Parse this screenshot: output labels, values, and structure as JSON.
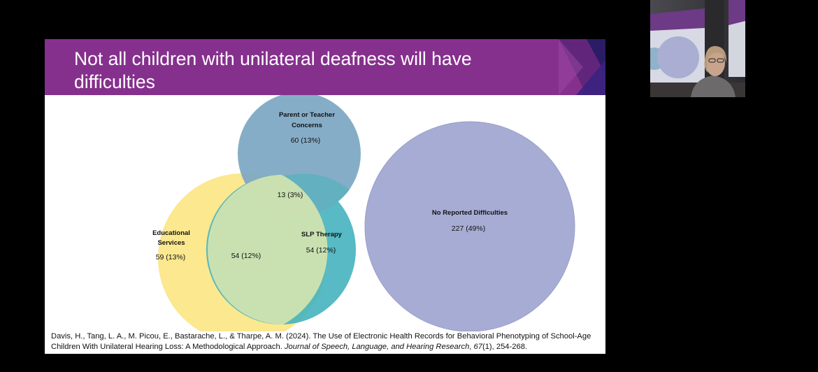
{
  "slide": {
    "title": "Not all children with unilateral deafness will have difficulties",
    "venn": {
      "parent_teacher": {
        "label_line1": "Parent or Teacher",
        "label_line2": "Concerns",
        "value": "60 (13%)"
      },
      "parent_slp_overlap": {
        "value": "13 (3%)"
      },
      "educational": {
        "label_line1": "Educational",
        "label_line2": "Services",
        "value": "59 (13%)"
      },
      "edu_slp_overlap": {
        "value": "54 (12%)"
      },
      "slp": {
        "label": "SLP Therapy",
        "value": "54 (12%)"
      },
      "no_difficulties": {
        "label": "No Reported Difficulties",
        "value": "227 (49%)"
      }
    },
    "citation": {
      "authors": "Davis, H., Tang, L. A., M. Picou, E., Bastarache, L., & Tharpe, A. M. (2024). The Use of Electronic Health Records for Behavioral Phenotyping of School-Age Children With Unilateral Hearing Loss: A Methodological Approach. ",
      "journal": "Journal of Speech, Language, and Hearing Research",
      "sep": ", ",
      "volume": "67",
      "issue_pages": "(1), 254-268."
    },
    "colors": {
      "banner": "#86308e",
      "parent_teacher": "#7fa9c4",
      "educational": "#fbe583",
      "slp": "#45b3bf",
      "no_difficulties": "#a7acd4"
    }
  },
  "webcam": {
    "description_icon": "presenter-video-feed"
  }
}
